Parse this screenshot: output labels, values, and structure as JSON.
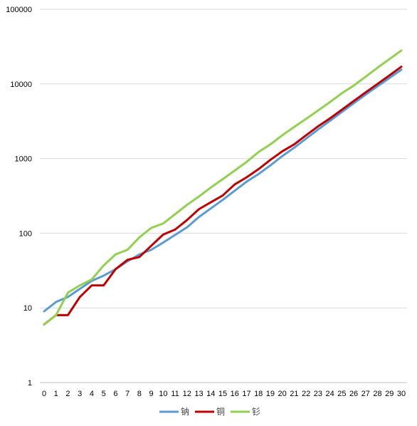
{
  "chart_data": {
    "type": "line",
    "title": "",
    "xlabel": "",
    "ylabel": "",
    "y_scale": "log",
    "ylim": [
      1,
      100000
    ],
    "y_ticks": [
      1,
      10,
      100,
      1000,
      10000,
      100000
    ],
    "y_tick_labels": [
      "1",
      "10",
      "100",
      "1000",
      "10000",
      "100000"
    ],
    "x": [
      0,
      1,
      2,
      3,
      4,
      5,
      6,
      7,
      8,
      9,
      10,
      11,
      12,
      13,
      14,
      15,
      16,
      17,
      18,
      19,
      20,
      21,
      22,
      23,
      24,
      25,
      26,
      27,
      28,
      29,
      30
    ],
    "x_tick_labels": [
      "0",
      "1",
      "2",
      "3",
      "4",
      "5",
      "6",
      "7",
      "8",
      "9",
      "10",
      "11",
      "12",
      "13",
      "14",
      "15",
      "16",
      "17",
      "18",
      "19",
      "20",
      "21",
      "22",
      "23",
      "24",
      "25",
      "26",
      "27",
      "28",
      "29",
      "30"
    ],
    "grid": "horizontal",
    "legend_position": "bottom",
    "series": [
      {
        "name": "钠",
        "color": "#5b9bd5",
        "values": [
          9,
          12,
          14,
          18,
          23,
          27,
          33,
          42,
          52,
          60,
          75,
          95,
          120,
          165,
          215,
          280,
          370,
          490,
          620,
          810,
          1080,
          1400,
          1850,
          2450,
          3200,
          4200,
          5500,
          7200,
          9300,
          12000,
          15500
        ]
      },
      {
        "name": "铜",
        "color": "#c00000",
        "values": [
          6,
          8,
          8,
          14,
          20,
          20,
          33,
          44,
          48,
          68,
          96,
          112,
          150,
          210,
          260,
          320,
          450,
          560,
          720,
          960,
          1250,
          1550,
          2050,
          2700,
          3450,
          4500,
          5900,
          7700,
          10000,
          13000,
          17000
        ]
      },
      {
        "name": "钐",
        "color": "#92d050",
        "values": [
          6,
          8,
          16,
          20,
          24,
          37,
          52,
          60,
          88,
          118,
          135,
          180,
          240,
          310,
          410,
          530,
          690,
          900,
          1220,
          1550,
          2050,
          2650,
          3400,
          4400,
          5700,
          7500,
          9500,
          12500,
          16500,
          21500,
          28000
        ]
      }
    ]
  }
}
